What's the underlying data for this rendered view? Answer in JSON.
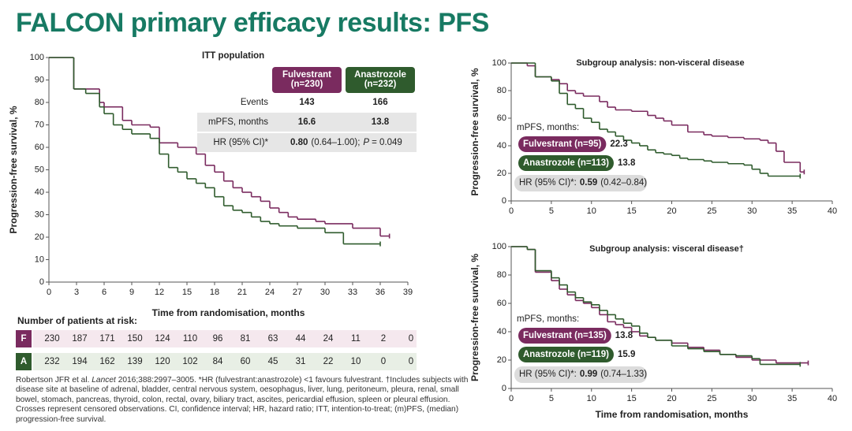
{
  "title": "FALCON primary efficacy results: PFS",
  "chart_data": [
    {
      "type": "step",
      "xlabel": "Time from randomisation, months",
      "ylabel": "Progression-free survival, %",
      "xlim": [
        0,
        39
      ],
      "xticks": [
        0,
        3,
        6,
        9,
        12,
        15,
        18,
        21,
        24,
        27,
        30,
        33,
        36,
        39
      ],
      "ylim": [
        0,
        100
      ],
      "yticks": [
        0,
        10,
        20,
        30,
        40,
        50,
        60,
        70,
        80,
        90,
        100
      ],
      "grid": false,
      "series": [
        {
          "name": "Fulvestrant",
          "color": "#7a2b5f",
          "x": [
            0,
            2.7,
            5.5,
            6,
            8,
            9,
            11,
            12,
            14,
            16,
            17,
            18,
            19,
            20,
            21,
            22,
            23,
            24,
            25,
            26,
            27,
            29,
            30,
            33,
            36,
            37
          ],
          "values": [
            100,
            86,
            80,
            78,
            72,
            70,
            69,
            62,
            60,
            57,
            52,
            49,
            45,
            42,
            40,
            38,
            36,
            33,
            31,
            29,
            28,
            27,
            26,
            24,
            20.5,
            20.5
          ]
        },
        {
          "name": "Anastrozole",
          "color": "#2f5b2d",
          "x": [
            0,
            2.7,
            4,
            5.5,
            6,
            7,
            8,
            9,
            11,
            12,
            13,
            14,
            15,
            16,
            17,
            18,
            19,
            20,
            21,
            22,
            23,
            24,
            25,
            27,
            30,
            32,
            36
          ],
          "values": [
            100,
            86,
            84,
            78,
            75,
            70,
            68,
            66,
            64,
            57,
            51,
            49,
            46,
            44,
            42,
            38,
            34,
            32,
            31,
            29,
            27,
            26,
            25,
            24,
            22,
            17,
            17
          ]
        }
      ]
    },
    {
      "type": "step",
      "title": "Subgroup analysis: non-visceral disease",
      "ylabel": "Progression-free survival, %",
      "xlim": [
        0,
        40
      ],
      "xticks": [
        0,
        5,
        10,
        15,
        20,
        25,
        30,
        35,
        40
      ],
      "ylim": [
        0,
        100
      ],
      "yticks": [
        0,
        20,
        40,
        60,
        80,
        100
      ],
      "grid": false,
      "mpfs_label": "mPFS, months:",
      "hr_label": "HR (95% CI)*:",
      "hr": 0.59,
      "hr_ci": "(0.42–0.84)",
      "series": [
        {
          "name": "Fulvestrant (n=95)",
          "color": "#7a2b5f",
          "median": 22.3,
          "x": [
            0,
            2,
            3,
            5,
            6,
            7,
            8,
            9,
            11,
            12,
            13,
            15,
            17,
            18,
            19,
            20,
            22,
            24,
            25,
            27,
            29,
            31,
            32,
            33,
            34,
            36,
            36.5
          ],
          "values": [
            100,
            98,
            90,
            88,
            85,
            80,
            78,
            76,
            72,
            68,
            66,
            65,
            62,
            60,
            58,
            55,
            50,
            48,
            47,
            46,
            45,
            44,
            42,
            36,
            28,
            21,
            21
          ]
        },
        {
          "name": "Anastrozole (n=113)",
          "color": "#2f5b2d",
          "median": 13.8,
          "x": [
            0,
            3,
            5,
            6,
            7,
            8,
            9,
            10,
            11,
            12,
            13,
            14,
            15,
            16,
            17,
            18,
            19,
            20,
            21,
            22,
            24,
            25,
            27,
            29,
            30,
            31,
            32,
            36
          ],
          "values": [
            100,
            90,
            87,
            78,
            70,
            67,
            60,
            57,
            52,
            50,
            47,
            44,
            42,
            40,
            37,
            35,
            34,
            33,
            31,
            30,
            29,
            28,
            27,
            26,
            23,
            20,
            18,
            18
          ]
        }
      ]
    },
    {
      "type": "step",
      "title": "Subgroup analysis: visceral disease†",
      "xlabel": "Time from randomisation, months",
      "ylabel": "Progression-free survival, %",
      "xlim": [
        0,
        40
      ],
      "xticks": [
        0,
        5,
        10,
        15,
        20,
        25,
        30,
        35,
        40
      ],
      "ylim": [
        0,
        100
      ],
      "yticks": [
        0,
        20,
        40,
        60,
        80,
        100
      ],
      "grid": false,
      "mpfs_label": "mPFS, months:",
      "hr_label": "HR (95% CI)*:",
      "hr": 0.99,
      "hr_ci": "(0.74–1.33)",
      "series": [
        {
          "name": "Fulvestrant (n=135)",
          "color": "#7a2b5f",
          "median": 13.8,
          "x": [
            0,
            2,
            3,
            5,
            6,
            7,
            8,
            9,
            10,
            11,
            12,
            13,
            14,
            15,
            16,
            17,
            18,
            20,
            22,
            24,
            26,
            28,
            30,
            33,
            37
          ],
          "values": [
            100,
            98,
            82,
            76,
            70,
            66,
            62,
            60,
            57,
            52,
            47,
            45,
            43,
            40,
            37,
            36,
            34,
            32,
            29,
            27,
            24,
            22,
            20,
            18,
            18
          ]
        },
        {
          "name": "Anastrozole (n=119)",
          "color": "#2f5b2d",
          "median": 15.9,
          "x": [
            0,
            2,
            3,
            5,
            6,
            7,
            8,
            9,
            10,
            11,
            12,
            13,
            14,
            15,
            16,
            17,
            18,
            20,
            22,
            24,
            26,
            28,
            30,
            31,
            36
          ],
          "values": [
            100,
            98,
            83,
            78,
            73,
            68,
            64,
            61,
            59,
            55,
            52,
            49,
            46,
            44,
            39,
            36,
            34,
            30,
            28,
            26,
            24,
            23,
            21,
            17,
            17
          ]
        }
      ]
    }
  ],
  "itt_table": {
    "title": "ITT population",
    "headers": [
      [
        "Fulvestrant",
        "(n=230)"
      ],
      [
        "Anastrozole",
        "(n=232)"
      ]
    ],
    "rows": [
      [
        "Events",
        143,
        166
      ],
      [
        "mPFS, months",
        16.6,
        13.8
      ]
    ],
    "hr_row": {
      "label": "HR (95% CI)*",
      "hr": "0.80",
      "ci": "(0.64–1.00);",
      "p_label": "P",
      "p_value": "= 0.049"
    }
  },
  "risk_table": {
    "title": "Number of patients at risk:",
    "rows": [
      {
        "label": "F",
        "values": [
          230,
          187,
          171,
          150,
          124,
          110,
          96,
          81,
          63,
          44,
          24,
          11,
          2,
          0
        ]
      },
      {
        "label": "A",
        "values": [
          232,
          194,
          162,
          139,
          120,
          102,
          84,
          60,
          45,
          31,
          22,
          10,
          0,
          0
        ]
      }
    ]
  },
  "footnote": [
    "Robertson JFR et al. ",
    "Lancet",
    " 2016;388:2997–3005. *HR (fulvestrant:anastrozole) <1 favours fulvestrant. †Includes subjects with disease site at baseline of adrenal, bladder, central nervous system, oesophagus, liver, lung, peritoneum, pleura, renal, small bowel, stomach, pancreas, thyroid, colon, rectal, ovary, biliary tract, ascites, pericardial effusion, spleen or pleural effusion. Crosses represent censored observations. CI, confidence interval; HR, hazard ratio; ITT, intention-to-treat; (m)PFS, (median) progression-free survival."
  ]
}
